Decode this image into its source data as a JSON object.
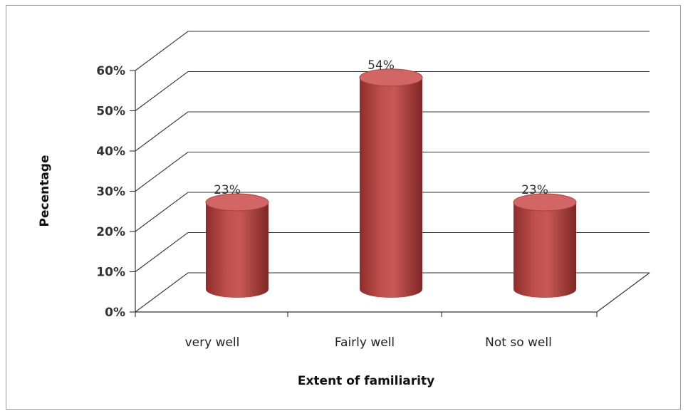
{
  "chart_data": {
    "type": "bar",
    "style": "3d-cylinder",
    "categories": [
      "very well",
      "Fairly well",
      "Not so well"
    ],
    "values": [
      23,
      54,
      23
    ],
    "data_labels": [
      "23%",
      "54%",
      "23%"
    ],
    "title": "",
    "xlabel": "Extent of familiarity",
    "ylabel": "Pecentage",
    "ylim": [
      0,
      60
    ],
    "yticks": [
      "0%",
      "10%",
      "20%",
      "30%",
      "40%",
      "50%",
      "60%"
    ],
    "grid": true,
    "legend": "none",
    "colors": {
      "bar": "#c0504d",
      "bar_dark": "#8e2e2c",
      "bar_top": "#d26664",
      "grid": "#333333"
    }
  }
}
